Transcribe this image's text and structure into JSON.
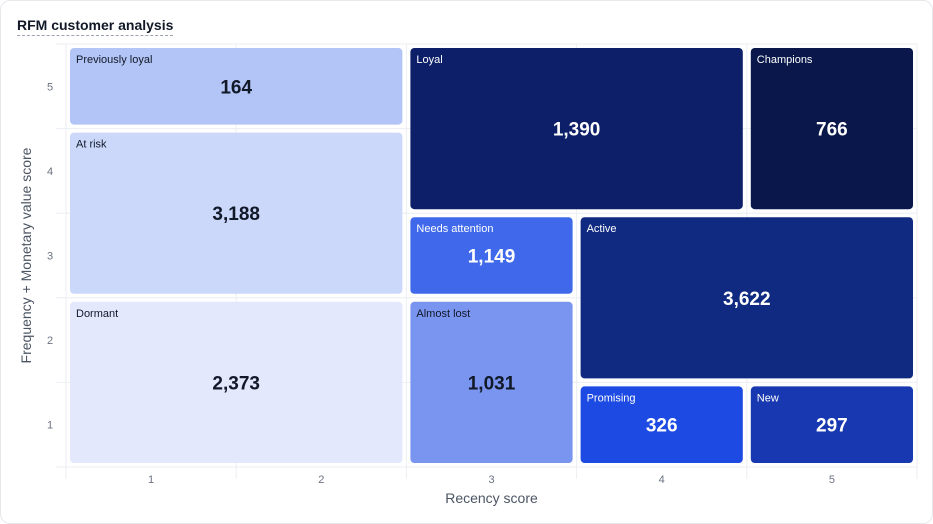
{
  "title": "RFM customer analysis",
  "chart_data": {
    "type": "heatmap",
    "title": "RFM customer analysis",
    "xlabel": "Recency score",
    "ylabel": "Frequency + Monetary value score",
    "x_ticks": [
      "1",
      "2",
      "3",
      "4",
      "5"
    ],
    "y_ticks": [
      "1",
      "2",
      "3",
      "4",
      "5"
    ],
    "xlim": [
      0.5,
      5.5
    ],
    "ylim": [
      0.5,
      5.5
    ],
    "segments": [
      {
        "name": "Previously loyal",
        "value": 164,
        "value_label": "164",
        "x": [
          1,
          2
        ],
        "y": [
          5,
          5
        ],
        "color": "#b3c5f6",
        "text_color": "#111827"
      },
      {
        "name": "At risk",
        "value": 3188,
        "value_label": "3,188",
        "x": [
          1,
          2
        ],
        "y": [
          3,
          4
        ],
        "color": "#cbd8fa",
        "text_color": "#111827"
      },
      {
        "name": "Dormant",
        "value": 2373,
        "value_label": "2,373",
        "x": [
          1,
          2
        ],
        "y": [
          1,
          2
        ],
        "color": "#e3e8fc",
        "text_color": "#111827"
      },
      {
        "name": "Loyal",
        "value": 1390,
        "value_label": "1,390",
        "x": [
          3,
          4
        ],
        "y": [
          4,
          5
        ],
        "color": "#0c1f68",
        "text_color": "#ffffff"
      },
      {
        "name": "Champions",
        "value": 766,
        "value_label": "766",
        "x": [
          5,
          5
        ],
        "y": [
          4,
          5
        ],
        "color": "#09174a",
        "text_color": "#ffffff"
      },
      {
        "name": "Needs attention",
        "value": 1149,
        "value_label": "1,149",
        "x": [
          3,
          3
        ],
        "y": [
          3,
          3
        ],
        "color": "#3f69ea",
        "text_color": "#ffffff"
      },
      {
        "name": "Almost lost",
        "value": 1031,
        "value_label": "1,031",
        "x": [
          3,
          3
        ],
        "y": [
          1,
          2
        ],
        "color": "#7a95ef",
        "text_color": "#111827"
      },
      {
        "name": "Active",
        "value": 3622,
        "value_label": "3,622",
        "x": [
          4,
          5
        ],
        "y": [
          2,
          3
        ],
        "color": "#0f2a80",
        "text_color": "#ffffff"
      },
      {
        "name": "Promising",
        "value": 326,
        "value_label": "326",
        "x": [
          4,
          4
        ],
        "y": [
          1,
          1
        ],
        "color": "#1c4ae2",
        "text_color": "#ffffff"
      },
      {
        "name": "New",
        "value": 297,
        "value_label": "297",
        "x": [
          5,
          5
        ],
        "y": [
          1,
          1
        ],
        "color": "#1738b0",
        "text_color": "#ffffff"
      }
    ]
  }
}
